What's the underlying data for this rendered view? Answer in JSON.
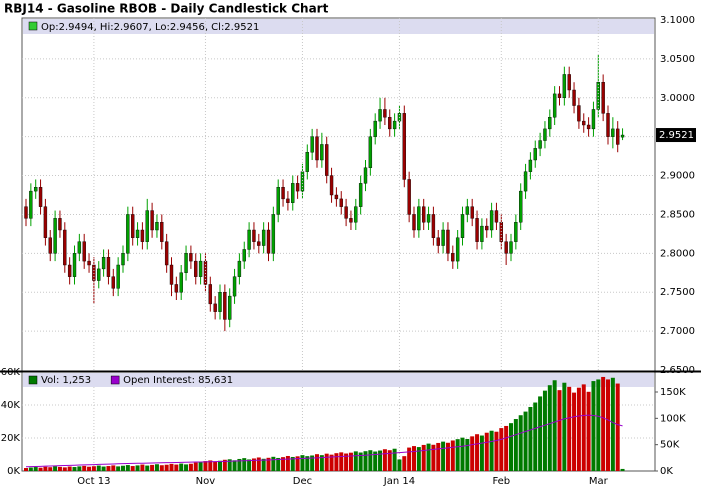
{
  "chart_data": [
    {
      "type": "candlestick",
      "title": "RBJ14 - Gasoline RBOB - Daily Candlestick Chart",
      "legend_label": "Op:2.9494, Hi:2.9607, Lo:2.9456, Cl:2.9521",
      "legend_color": "#33cc33",
      "up_color": "#00a000",
      "down_color": "#990000",
      "last_price": 2.9521,
      "grid": true,
      "ylim": [
        2.65,
        3.1
      ],
      "yticks": [
        {
          "value": 2.65,
          "label": "2.6500"
        },
        {
          "value": 2.7,
          "label": "2.7000"
        },
        {
          "value": 2.75,
          "label": "2.7500"
        },
        {
          "value": 2.8,
          "label": "2.8000"
        },
        {
          "value": 2.85,
          "label": "2.8500"
        },
        {
          "value": 2.9,
          "label": "2.9000"
        },
        {
          "value": 2.95,
          "label": "2.9500"
        },
        {
          "value": 3.0,
          "label": "3.0000"
        },
        {
          "value": 3.05,
          "label": "3.0500"
        },
        {
          "value": 3.1,
          "label": "3.1000"
        }
      ],
      "open": [
        2.86,
        2.845,
        2.88,
        2.885,
        2.86,
        2.82,
        2.8,
        2.845,
        2.83,
        2.785,
        2.77,
        2.8,
        2.815,
        2.79,
        2.785,
        2.765,
        2.78,
        2.795,
        2.77,
        2.755,
        2.785,
        2.8,
        2.85,
        2.82,
        2.83,
        2.815,
        2.855,
        2.83,
        2.84,
        2.815,
        2.785,
        2.76,
        2.75,
        2.775,
        2.8,
        2.79,
        2.77,
        2.79,
        2.76,
        2.735,
        2.725,
        2.75,
        2.715,
        2.745,
        2.77,
        2.79,
        2.805,
        2.83,
        2.815,
        2.81,
        2.83,
        2.8,
        2.85,
        2.885,
        2.87,
        2.865,
        2.89,
        2.88,
        2.905,
        2.93,
        2.95,
        2.92,
        2.94,
        2.9,
        2.875,
        2.87,
        2.86,
        2.845,
        2.84,
        2.86,
        2.89,
        2.91,
        2.95,
        2.97,
        2.985,
        2.975,
        2.96,
        2.97,
        2.98,
        2.895,
        2.85,
        2.83,
        2.86,
        2.84,
        2.85,
        2.82,
        2.81,
        2.83,
        2.8,
        2.79,
        2.82,
        2.85,
        2.86,
        2.845,
        2.815,
        2.835,
        2.83,
        2.855,
        2.84,
        2.815,
        2.8,
        2.815,
        2.84,
        2.88,
        2.905,
        2.92,
        2.935,
        2.945,
        2.96,
        2.975,
        3.005,
        3.0,
        3.03,
        3.01,
        2.99,
        2.97,
        2.965,
        2.96,
        2.985,
        3.02,
        2.98,
        2.95,
        2.96,
        2.9494
      ],
      "high": [
        2.87,
        2.89,
        2.895,
        2.895,
        2.87,
        2.83,
        2.855,
        2.855,
        2.84,
        2.795,
        2.81,
        2.825,
        2.825,
        2.8,
        2.795,
        2.79,
        2.805,
        2.805,
        2.78,
        2.795,
        2.81,
        2.86,
        2.86,
        2.84,
        2.84,
        2.87,
        2.865,
        2.85,
        2.85,
        2.825,
        2.795,
        2.77,
        2.785,
        2.81,
        2.81,
        2.8,
        2.8,
        2.8,
        2.77,
        2.745,
        2.76,
        2.76,
        2.755,
        2.78,
        2.8,
        2.815,
        2.84,
        2.84,
        2.825,
        2.84,
        2.84,
        2.86,
        2.895,
        2.895,
        2.88,
        2.9,
        2.9,
        2.915,
        2.94,
        2.96,
        2.96,
        2.955,
        2.95,
        2.91,
        2.885,
        2.88,
        2.87,
        2.855,
        2.87,
        2.9,
        2.92,
        2.96,
        2.98,
        3.0,
        3.0,
        2.985,
        2.98,
        2.99,
        2.99,
        2.905,
        2.86,
        2.87,
        2.87,
        2.86,
        2.86,
        2.83,
        2.84,
        2.84,
        2.81,
        2.83,
        2.86,
        2.87,
        2.87,
        2.855,
        2.845,
        2.845,
        2.865,
        2.865,
        2.85,
        2.825,
        2.825,
        2.85,
        2.89,
        2.915,
        2.93,
        2.945,
        2.955,
        2.97,
        2.985,
        3.015,
        3.015,
        3.04,
        3.04,
        3.02,
        3.0,
        2.98,
        2.975,
        2.995,
        3.055,
        3.03,
        2.99,
        2.975,
        2.97,
        2.9607
      ],
      "low": [
        2.835,
        2.835,
        2.87,
        2.85,
        2.81,
        2.79,
        2.79,
        2.82,
        2.775,
        2.76,
        2.76,
        2.79,
        2.78,
        2.775,
        2.735,
        2.755,
        2.77,
        2.76,
        2.745,
        2.745,
        2.775,
        2.79,
        2.81,
        2.81,
        2.805,
        2.805,
        2.82,
        2.82,
        2.805,
        2.775,
        2.745,
        2.74,
        2.74,
        2.765,
        2.78,
        2.76,
        2.76,
        2.75,
        2.725,
        2.715,
        2.715,
        2.7,
        2.705,
        2.735,
        2.76,
        2.78,
        2.795,
        2.805,
        2.8,
        2.8,
        2.79,
        2.79,
        2.84,
        2.86,
        2.855,
        2.855,
        2.87,
        2.87,
        2.895,
        2.92,
        2.91,
        2.91,
        2.89,
        2.865,
        2.86,
        2.85,
        2.835,
        2.83,
        2.83,
        2.85,
        2.88,
        2.9,
        2.94,
        2.96,
        2.965,
        2.95,
        2.95,
        2.96,
        2.885,
        2.84,
        2.82,
        2.82,
        2.83,
        2.83,
        2.81,
        2.8,
        2.8,
        2.79,
        2.78,
        2.78,
        2.81,
        2.84,
        2.835,
        2.805,
        2.805,
        2.82,
        2.82,
        2.83,
        2.805,
        2.785,
        2.79,
        2.805,
        2.83,
        2.87,
        2.895,
        2.91,
        2.925,
        2.935,
        2.95,
        2.965,
        2.99,
        2.99,
        3.0,
        2.98,
        2.96,
        2.955,
        2.95,
        2.95,
        2.975,
        2.97,
        2.94,
        2.935,
        2.93,
        2.9456
      ],
      "close": [
        2.845,
        2.88,
        2.885,
        2.86,
        2.82,
        2.8,
        2.845,
        2.83,
        2.785,
        2.77,
        2.8,
        2.815,
        2.79,
        2.785,
        2.765,
        2.78,
        2.795,
        2.77,
        2.755,
        2.785,
        2.8,
        2.85,
        2.82,
        2.83,
        2.815,
        2.855,
        2.83,
        2.84,
        2.815,
        2.785,
        2.76,
        2.75,
        2.775,
        2.8,
        2.79,
        2.77,
        2.79,
        2.76,
        2.735,
        2.725,
        2.75,
        2.715,
        2.745,
        2.77,
        2.79,
        2.805,
        2.83,
        2.815,
        2.81,
        2.83,
        2.8,
        2.85,
        2.885,
        2.87,
        2.865,
        2.89,
        2.88,
        2.905,
        2.93,
        2.95,
        2.92,
        2.94,
        2.9,
        2.875,
        2.87,
        2.86,
        2.845,
        2.84,
        2.86,
        2.89,
        2.91,
        2.95,
        2.97,
        2.985,
        2.975,
        2.96,
        2.97,
        2.98,
        2.895,
        2.85,
        2.83,
        2.86,
        2.84,
        2.85,
        2.82,
        2.81,
        2.83,
        2.8,
        2.79,
        2.82,
        2.85,
        2.86,
        2.845,
        2.815,
        2.835,
        2.83,
        2.855,
        2.84,
        2.815,
        2.8,
        2.815,
        2.84,
        2.88,
        2.905,
        2.92,
        2.935,
        2.945,
        2.96,
        2.975,
        3.005,
        3.0,
        3.03,
        3.01,
        2.99,
        2.97,
        2.965,
        2.96,
        2.985,
        3.02,
        2.98,
        2.95,
        2.96,
        2.94,
        2.9521
      ]
    },
    {
      "type": "bar",
      "up_color": "#007a00",
      "down_color": "#cc0000",
      "grid": true,
      "ylim": [
        0,
        60000
      ],
      "yticks": [
        {
          "value": 0,
          "label": "0K"
        },
        {
          "value": 20000,
          "label": "20K"
        },
        {
          "value": 40000,
          "label": "40K"
        },
        {
          "value": 60000,
          "label": "60K"
        }
      ],
      "y2lim": [
        0,
        188000
      ],
      "y2ticks": [
        {
          "value": 0,
          "label": "0K"
        },
        {
          "value": 50000,
          "label": "50K"
        },
        {
          "value": 100000,
          "label": "100K"
        },
        {
          "value": 150000,
          "label": "150K"
        }
      ],
      "categories": [
        null,
        null,
        null,
        null,
        null,
        null,
        null,
        null,
        null,
        null,
        null,
        null,
        null,
        null,
        "Oct 13",
        null,
        null,
        null,
        null,
        null,
        null,
        null,
        null,
        null,
        null,
        null,
        null,
        null,
        null,
        null,
        null,
        null,
        null,
        null,
        null,
        null,
        null,
        "Nov",
        null,
        null,
        null,
        null,
        null,
        null,
        null,
        null,
        null,
        null,
        null,
        null,
        null,
        null,
        null,
        null,
        null,
        null,
        null,
        "Dec",
        null,
        null,
        null,
        null,
        null,
        null,
        null,
        null,
        null,
        null,
        null,
        null,
        null,
        null,
        null,
        null,
        null,
        null,
        null,
        "Jan 14",
        null,
        null,
        null,
        null,
        null,
        null,
        null,
        null,
        null,
        null,
        null,
        null,
        null,
        null,
        null,
        null,
        null,
        null,
        null,
        null,
        "Feb",
        null,
        null,
        null,
        null,
        null,
        null,
        null,
        null,
        null,
        null,
        null,
        null,
        null,
        null,
        null,
        null,
        null,
        null,
        null,
        "Mar",
        null,
        null,
        null,
        null,
        null
      ],
      "series": [
        {
          "name": "Vol: 1,253",
          "color": "#007a00",
          "values": [
            1800,
            2100,
            2400,
            2000,
            2600,
            2300,
            2900,
            2500,
            2200,
            2700,
            2400,
            2800,
            3100,
            2600,
            2900,
            3300,
            2700,
            3000,
            3400,
            2800,
            3200,
            3600,
            3000,
            3400,
            3900,
            3300,
            3700,
            4100,
            3500,
            3800,
            4300,
            3900,
            4500,
            4000,
            4400,
            5100,
            5600,
            6000,
            6400,
            5800,
            6200,
            6800,
            7100,
            6500,
            7300,
            7800,
            7000,
            7600,
            8200,
            7400,
            8000,
            8600,
            7900,
            8400,
            9100,
            8500,
            8900,
            9600,
            9000,
            9400,
            10200,
            9600,
            10500,
            9900,
            10800,
            11300,
            10600,
            11100,
            11900,
            11200,
            12000,
            12600,
            11800,
            12400,
            13200,
            12600,
            13500,
            7000,
            9000,
            14200,
            15100,
            14500,
            15800,
            16600,
            15900,
            17000,
            17800,
            17100,
            18500,
            19300,
            20200,
            19400,
            21000,
            22300,
            21500,
            23200,
            24400,
            23800,
            26000,
            27300,
            29000,
            31500,
            33800,
            36000,
            38800,
            41500,
            45200,
            48700,
            52000,
            55000,
            49000,
            53500,
            51000,
            47500,
            50500,
            52500,
            48000,
            54500,
            55500,
            57000,
            55500,
            56500,
            53000,
            1253
          ]
        },
        {
          "name": "Open Interest: 85,631",
          "color": "#9900cc",
          "axis": "y2",
          "values": [
            8000,
            8300,
            8600,
            8900,
            9200,
            9500,
            9800,
            10100,
            10400,
            10700,
            11000,
            11300,
            11600,
            11900,
            12200,
            12500,
            12800,
            13100,
            13400,
            13700,
            14000,
            14200,
            14400,
            14600,
            14800,
            15000,
            15200,
            15400,
            15600,
            15800,
            16000,
            16200,
            16400,
            16600,
            16800,
            17000,
            17200,
            17400,
            17600,
            17800,
            18000,
            18300,
            18600,
            18900,
            19200,
            19500,
            19800,
            20100,
            20400,
            20700,
            21000,
            21400,
            21800,
            22200,
            22600,
            23000,
            23400,
            23800,
            24200,
            24600,
            25000,
            25500,
            26000,
            26500,
            27000,
            27500,
            28000,
            28500,
            29000,
            29500,
            30000,
            30700,
            31400,
            32100,
            32800,
            33500,
            34200,
            34900,
            35600,
            36300,
            37000,
            38000,
            39000,
            40000,
            41000,
            42000,
            43000,
            44000,
            45000,
            46000,
            47000,
            48500,
            50000,
            51500,
            53000,
            54500,
            56000,
            58000,
            60000,
            63000,
            66000,
            69000,
            72000,
            75000,
            78000,
            81000,
            84000,
            87000,
            90000,
            93000,
            96000,
            99000,
            101000,
            103000,
            104500,
            105500,
            106000,
            105500,
            104000,
            101000,
            97000,
            92000,
            88000,
            85631
          ]
        }
      ]
    }
  ]
}
